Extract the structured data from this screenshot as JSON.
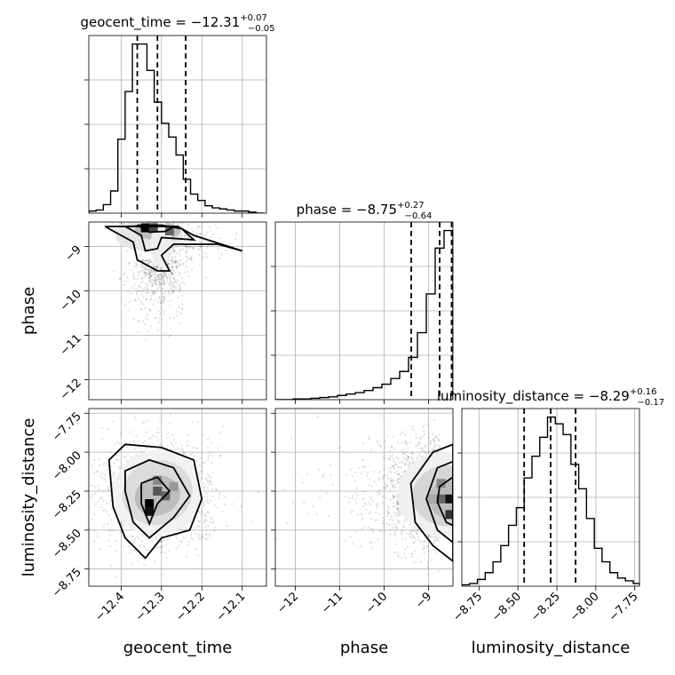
{
  "chart_data": {
    "type": "corner",
    "parameters": [
      "geocent_time",
      "phase",
      "luminosity_distance"
    ],
    "axis_labels": {
      "x": [
        "geocent_time",
        "phase",
        "luminosity_distance"
      ],
      "y": [
        "phase",
        "luminosity_distance"
      ]
    },
    "titles": [
      {
        "param": "geocent_time",
        "prefix": "geocent_time = −12.31",
        "plus": "+0.07",
        "minus": "−0.05",
        "median": -12.31
      },
      {
        "param": "phase",
        "prefix": "phase = −8.75",
        "plus": "+0.27",
        "minus": "−0.64",
        "median": -8.75
      },
      {
        "param": "luminosity_distance",
        "prefix": "luminosity_distance = −8.29",
        "plus": "+0.16",
        "minus": "−0.17",
        "median": -8.29
      }
    ],
    "ranges": {
      "geocent_time": [
        -12.48,
        -12.04
      ],
      "phase": [
        -12.45,
        -8.45
      ],
      "luminosity_distance": [
        -8.86,
        -7.72
      ]
    },
    "ticks": {
      "geocent_time": [
        -12.4,
        -12.3,
        -12.2,
        -12.1
      ],
      "phase": [
        -12,
        -11,
        -10,
        -9
      ],
      "luminosity_distance": [
        -8.75,
        -8.5,
        -8.25,
        -8.0,
        -7.75
      ]
    },
    "tick_labels": {
      "geocent_time": [
        "−12.4",
        "−12.3",
        "−12.2",
        "−12.1"
      ],
      "phase": [
        "−12",
        "−11",
        "−10",
        "−9"
      ],
      "luminosity_distance": [
        "−8.75",
        "−8.50",
        "−8.25",
        "−8.00",
        "−7.75"
      ]
    },
    "quantiles": {
      "geocent_time": [
        -12.36,
        -12.31,
        -12.24
      ],
      "phase": [
        -9.39,
        -8.75,
        -8.48
      ],
      "luminosity_distance": [
        -8.46,
        -8.29,
        -8.13
      ]
    },
    "hist_geocent_time": {
      "edges": [
        -12.48,
        -12.462,
        -12.444,
        -12.426,
        -12.408,
        -12.39,
        -12.372,
        -12.354,
        -12.336,
        -12.318,
        -12.3,
        -12.282,
        -12.264,
        -12.246,
        -12.228,
        -12.21,
        -12.192,
        -12.174,
        -12.156,
        -12.138,
        -12.12,
        -12.102,
        -12.084,
        -12.066,
        -12.048
      ],
      "counts": [
        2,
        3,
        8,
        21,
        70,
        115,
        160,
        160,
        135,
        105,
        85,
        72,
        55,
        32,
        18,
        12,
        7,
        5,
        4,
        3,
        2,
        2,
        1,
        0
      ]
    },
    "hist_phase": {
      "edges": [
        -12.45,
        -12.05,
        -11.85,
        -11.65,
        -11.45,
        -11.25,
        -11.05,
        -10.85,
        -10.65,
        -10.45,
        -10.25,
        -10.05,
        -9.85,
        -9.65,
        -9.45,
        -9.25,
        -9.05,
        -8.85,
        -8.65,
        -8.45
      ],
      "counts": [
        0,
        1,
        1,
        2,
        3,
        4,
        6,
        8,
        10,
        13,
        17,
        22,
        30,
        40,
        60,
        95,
        150,
        215,
        240
      ]
    },
    "hist_luminosity_distance": {
      "edges": [
        -8.86,
        -8.81,
        -8.76,
        -8.71,
        -8.66,
        -8.61,
        -8.56,
        -8.51,
        -8.46,
        -8.41,
        -8.36,
        -8.31,
        -8.26,
        -8.21,
        -8.16,
        -8.11,
        -8.06,
        -8.01,
        -7.96,
        -7.91,
        -7.86,
        -7.81,
        -7.76,
        -7.72
      ],
      "counts": [
        1,
        2,
        5,
        10,
        18,
        30,
        45,
        58,
        80,
        96,
        110,
        125,
        120,
        112,
        90,
        72,
        50,
        28,
        18,
        10,
        6,
        4,
        2
      ]
    },
    "grid": true
  }
}
